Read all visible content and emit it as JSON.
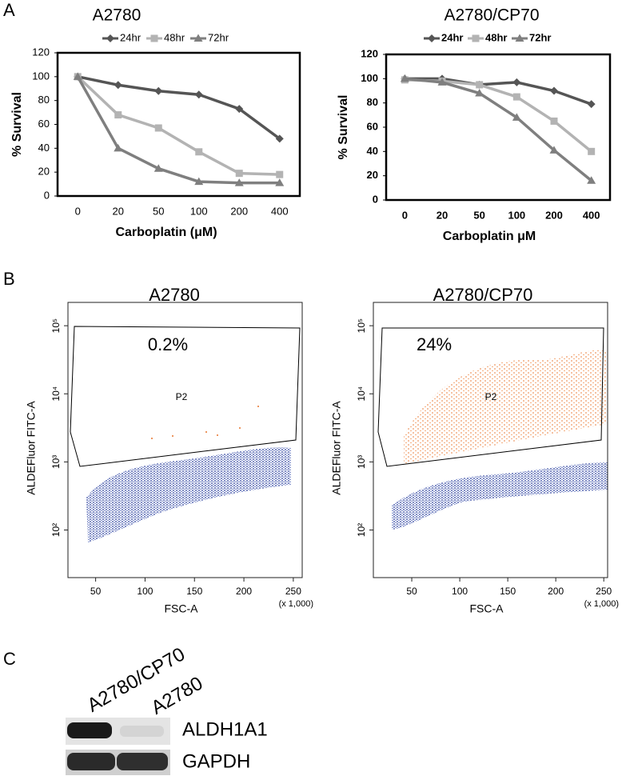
{
  "panel_labels": [
    "A",
    "B",
    "C"
  ],
  "chart_data": [
    {
      "type": "line",
      "title": "A2780",
      "x_label": "Carboplatin (μM)",
      "y_label": "% Survival",
      "categories": [
        "0",
        "20",
        "50",
        "100",
        "200",
        "400"
      ],
      "ylim": [
        0,
        120
      ],
      "yticks": [
        0,
        20,
        40,
        60,
        80,
        100,
        120
      ],
      "legend": "top",
      "series": [
        {
          "name": "24hr",
          "color": "#555555",
          "marker": "diamond",
          "values": [
            100,
            93,
            88,
            85,
            73,
            48
          ]
        },
        {
          "name": "48hr",
          "color": "#b3b3b3",
          "marker": "square",
          "values": [
            100,
            68,
            57,
            37,
            19,
            18
          ]
        },
        {
          "name": "72hr",
          "color": "#7f7f7f",
          "marker": "triangle",
          "values": [
            100,
            40,
            23,
            12,
            11,
            11
          ]
        }
      ]
    },
    {
      "type": "line",
      "title": "A2780/CP70",
      "x_label": "Carboplatin μM",
      "y_label": "% Survival",
      "categories": [
        "0",
        "20",
        "50",
        "100",
        "200",
        "400"
      ],
      "ylim": [
        0,
        120
      ],
      "yticks": [
        0,
        20,
        40,
        60,
        80,
        100,
        120
      ],
      "legend": "top",
      "series": [
        {
          "name": "24hr",
          "color": "#555555",
          "marker": "diamond",
          "values": [
            100,
            100,
            95,
            97,
            90,
            79
          ]
        },
        {
          "name": "48hr",
          "color": "#b3b3b3",
          "marker": "square",
          "values": [
            99,
            98,
            95,
            85,
            65,
            40
          ]
        },
        {
          "name": "72hr",
          "color": "#7f7f7f",
          "marker": "triangle",
          "values": [
            100,
            97,
            88,
            68,
            41,
            16
          ]
        }
      ]
    }
  ],
  "flow_plots": [
    {
      "type": "scatter",
      "title": "A2780",
      "gate_percent": "0.2%",
      "gate_name": "P2",
      "y_label": "ALDEFluor FITC-A",
      "x_label": "FSC-A",
      "x_scale_note": "(x 1,000)",
      "xlim": [
        22,
        259
      ],
      "xticks": [
        50,
        100,
        150,
        200,
        250
      ],
      "log_y": true,
      "ylim": [
        20,
        220000
      ],
      "yticks": [
        {
          "value": 100000,
          "label": "10⁵"
        },
        {
          "value": 10000,
          "label": "10⁴"
        },
        {
          "value": 1000,
          "label": "10³"
        },
        {
          "value": 100,
          "label": "10²"
        }
      ]
    },
    {
      "type": "scatter",
      "title": "A2780/CP70",
      "gate_percent": "24%",
      "gate_name": "P2",
      "y_label": "ALDEFluor FITC-A",
      "x_label": "FSC-A",
      "x_scale_note": "(x 1,000)",
      "xlim": [
        10,
        254
      ],
      "xticks": [
        50,
        100,
        150,
        200,
        250
      ],
      "log_y": true,
      "ylim": [
        20,
        220000
      ],
      "yticks": [
        {
          "value": 100000,
          "label": "10⁵"
        },
        {
          "value": 10000,
          "label": "10⁴"
        },
        {
          "value": 1000,
          "label": "10³"
        },
        {
          "value": 100,
          "label": "10²"
        }
      ]
    }
  ],
  "western_blot": {
    "lanes": [
      "A2780/CP70",
      "A2780"
    ],
    "rows": [
      "ALDH1A1",
      "GAPDH"
    ]
  }
}
